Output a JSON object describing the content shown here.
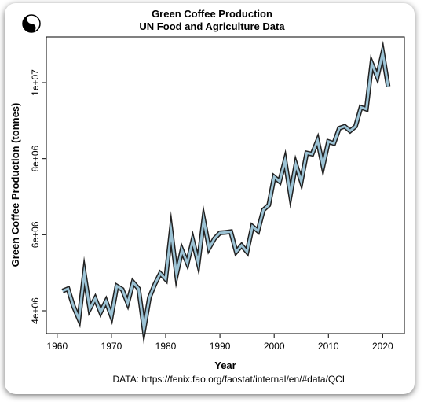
{
  "chart_data": {
    "type": "line",
    "title": "Green Coffee Production",
    "subtitle": "UN Food and Agriculture Data",
    "xlabel": "Year",
    "ylabel": "Green Coffee Production (tonnes)",
    "xlim": [
      1958,
      2024
    ],
    "ylim": [
      3400000,
      11200000
    ],
    "xticks": [
      1960,
      1970,
      1980,
      1990,
      2000,
      2010,
      2020
    ],
    "xtick_labels": [
      "1960",
      "1970",
      "1980",
      "1990",
      "2000",
      "2010",
      "2020"
    ],
    "yticks": [
      4000000,
      6000000,
      8000000,
      10000000
    ],
    "ytick_labels": [
      "4e+06",
      "6e+06",
      "8e+06",
      "1e+07"
    ],
    "grid": false,
    "line_color": "#9cc3d5",
    "outline_color": "#222222",
    "series": [
      {
        "x": [
          1961,
          1962,
          1963,
          1964,
          1965,
          1966,
          1967,
          1968,
          1969,
          1970,
          1971,
          1972,
          1973,
          1974,
          1975,
          1976,
          1977,
          1978,
          1979,
          1980,
          1981,
          1982,
          1983,
          1984,
          1985,
          1986,
          1987,
          1988,
          1989,
          1990,
          1991,
          1992,
          1993,
          1994,
          1995,
          1996,
          1997,
          1998,
          1999,
          2000,
          2001,
          2002,
          2003,
          2004,
          2005,
          2006,
          2007,
          2008,
          2009,
          2010,
          2011,
          2012,
          2013,
          2014,
          2015,
          2016,
          2017,
          2018,
          2019,
          2020,
          2021
        ],
        "values": [
          4520000,
          4580000,
          4120000,
          3780000,
          4980000,
          4050000,
          4320000,
          3960000,
          4250000,
          3860000,
          4650000,
          4560000,
          4200000,
          4750000,
          4580000,
          3520000,
          4350000,
          4700000,
          4980000,
          4830000,
          6100000,
          4950000,
          5600000,
          5250000,
          5850000,
          5250000,
          6400000,
          5650000,
          5900000,
          6050000,
          6060000,
          6080000,
          5550000,
          5720000,
          5550000,
          6220000,
          6100000,
          6650000,
          6780000,
          7520000,
          7400000,
          7950000,
          7050000,
          7850000,
          7400000,
          8150000,
          8120000,
          8480000,
          7800000,
          8450000,
          8400000,
          8800000,
          8850000,
          8730000,
          8850000,
          9350000,
          9300000,
          10500000,
          10150000,
          10780000,
          9900000
        ]
      }
    ],
    "source_note": "DATA: https://fenix.fao.org/faostat/internal/en/#data/QCL"
  },
  "logo": {
    "icon": "yin-yang-icon"
  }
}
